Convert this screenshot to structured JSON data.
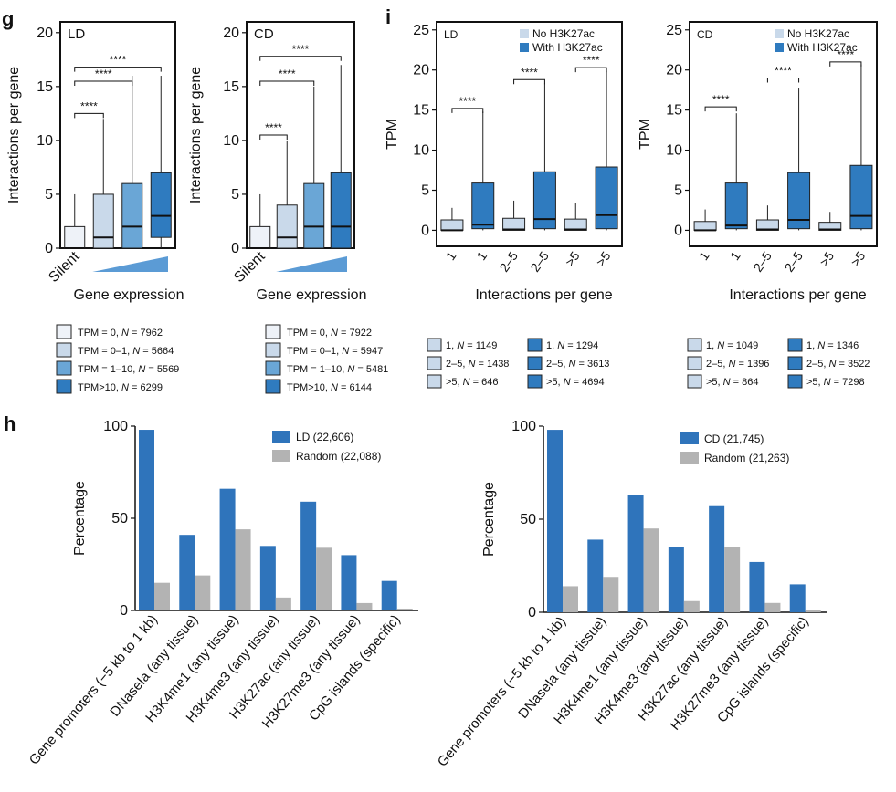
{
  "colors": {
    "white_box": "#eef2f8",
    "light_box": "#c9d9ea",
    "mid_box": "#6aa6d6",
    "dark_box": "#2f7bbf",
    "bar_blue": "#2f74bb",
    "bar_gray": "#b3b3b3",
    "ramp": "#5b9bd5"
  },
  "panel_labels": {
    "g": "g",
    "i": "i",
    "h": "h"
  },
  "chart_data": [
    {
      "id": "g-LD",
      "type": "box",
      "inset_label": "LD",
      "ylabel": "Interactions per gene",
      "xlabel": "Gene expression",
      "first_category_label": "Silent",
      "ylim": [
        0,
        21
      ],
      "yticks": [
        0,
        5,
        10,
        15,
        20
      ],
      "boxes": [
        {
          "min": 0,
          "q1": 0,
          "median": 0,
          "q3": 2,
          "max": 5
        },
        {
          "min": 0,
          "q1": 0,
          "median": 1,
          "q3": 5,
          "max": 12
        },
        {
          "min": 0,
          "q1": 0,
          "median": 2,
          "q3": 6,
          "max": 16
        },
        {
          "min": 0,
          "q1": 1,
          "median": 3,
          "q3": 7,
          "max": 16
        }
      ],
      "significance": [
        {
          "from": 0,
          "to": 1,
          "y": 12.5,
          "label": "****"
        },
        {
          "from": 0,
          "to": 2,
          "y": 15.5,
          "label": "****"
        },
        {
          "from": 0,
          "to": 3,
          "y": 16.8,
          "label": "****"
        }
      ],
      "legend": [
        {
          "label": "TPM = 0, N = 7962"
        },
        {
          "label": "TPM = 0–1, N = 5664"
        },
        {
          "label": "TPM = 1–10, N = 5569"
        },
        {
          "label": "TPM>10, N = 6299"
        }
      ]
    },
    {
      "id": "g-CD",
      "type": "box",
      "inset_label": "CD",
      "ylabel": "Interactions per gene",
      "xlabel": "Gene expression",
      "first_category_label": "Silent",
      "ylim": [
        0,
        21
      ],
      "yticks": [
        0,
        5,
        10,
        15,
        20
      ],
      "boxes": [
        {
          "min": 0,
          "q1": 0,
          "median": 0,
          "q3": 2,
          "max": 5
        },
        {
          "min": 0,
          "q1": 0,
          "median": 1,
          "q3": 4,
          "max": 10
        },
        {
          "min": 0,
          "q1": 0,
          "median": 2,
          "q3": 6,
          "max": 15
        },
        {
          "min": 0,
          "q1": 0,
          "median": 2,
          "q3": 7,
          "max": 17
        }
      ],
      "significance": [
        {
          "from": 0,
          "to": 1,
          "y": 10.5,
          "label": "****"
        },
        {
          "from": 0,
          "to": 2,
          "y": 15.5,
          "label": "****"
        },
        {
          "from": 0,
          "to": 3,
          "y": 17.8,
          "label": "****"
        }
      ],
      "legend": [
        {
          "label": "TPM = 0, N = 7922"
        },
        {
          "label": "TPM = 0–1, N = 5947"
        },
        {
          "label": "TPM = 1–10, N = 5481"
        },
        {
          "label": "TPM>10, N = 6144"
        }
      ]
    },
    {
      "id": "i-LD",
      "type": "box",
      "inset_label": "LD",
      "ylabel": "TPM",
      "xlabel": "Interactions per gene",
      "ylim": [
        -2,
        26
      ],
      "yticks": [
        0,
        5,
        10,
        15,
        20,
        25
      ],
      "categories": [
        "1",
        "1",
        "2–5",
        "2–5",
        ">5",
        ">5"
      ],
      "series_legend": [
        "No H3K27ac",
        "With H3K27ac"
      ],
      "boxes": [
        {
          "min": 0,
          "q1": 0,
          "median": 0,
          "q3": 1.3,
          "max": 2.8
        },
        {
          "min": 0,
          "q1": 0.2,
          "median": 0.7,
          "q3": 5.9,
          "max": 14.8
        },
        {
          "min": 0,
          "q1": 0,
          "median": 0.1,
          "q3": 1.5,
          "max": 3.7
        },
        {
          "min": 0,
          "q1": 0.2,
          "median": 1.4,
          "q3": 7.3,
          "max": 18.3
        },
        {
          "min": 0,
          "q1": 0,
          "median": 0.1,
          "q3": 1.4,
          "max": 3.4
        },
        {
          "min": 0,
          "q1": 0.2,
          "median": 1.9,
          "q3": 7.9,
          "max": 19.8
        }
      ],
      "significance": [
        {
          "from": 0,
          "to": 1,
          "y": 15.2,
          "label": "****"
        },
        {
          "from": 2,
          "to": 3,
          "y": 18.8,
          "label": "****"
        },
        {
          "from": 4,
          "to": 5,
          "y": 20.3,
          "label": "****"
        }
      ],
      "legend": [
        {
          "label": "1, N = 1149"
        },
        {
          "label": "2–5, N = 1438"
        },
        {
          "label": ">5, N = 646"
        },
        {
          "label": "1, N = 1294"
        },
        {
          "label": "2–5, N = 3613"
        },
        {
          "label": ">5, N = 4694"
        }
      ]
    },
    {
      "id": "i-CD",
      "type": "box",
      "inset_label": "CD",
      "ylabel": "TPM",
      "xlabel": "Interactions per gene",
      "ylim": [
        -2,
        26
      ],
      "yticks": [
        0,
        5,
        10,
        15,
        20,
        25
      ],
      "categories": [
        "1",
        "1",
        "2–5",
        "2–5",
        ">5",
        ">5"
      ],
      "series_legend": [
        "No H3K27ac",
        "With H3K27ac"
      ],
      "boxes": [
        {
          "min": 0,
          "q1": 0,
          "median": 0,
          "q3": 1.1,
          "max": 2.6
        },
        {
          "min": 0,
          "q1": 0.2,
          "median": 0.6,
          "q3": 5.9,
          "max": 14.6
        },
        {
          "min": 0,
          "q1": 0,
          "median": 0.1,
          "q3": 1.3,
          "max": 3.1
        },
        {
          "min": 0,
          "q1": 0.2,
          "median": 1.3,
          "q3": 7.2,
          "max": 17.8
        },
        {
          "min": 0,
          "q1": 0,
          "median": 0.1,
          "q3": 1.0,
          "max": 2.3
        },
        {
          "min": 0,
          "q1": 0.2,
          "median": 1.8,
          "q3": 8.1,
          "max": 20.7
        }
      ],
      "significance": [
        {
          "from": 0,
          "to": 1,
          "y": 15.4,
          "label": "****"
        },
        {
          "from": 2,
          "to": 3,
          "y": 19.0,
          "label": "****"
        },
        {
          "from": 4,
          "to": 5,
          "y": 21.0,
          "label": "****"
        }
      ],
      "legend": [
        {
          "label": "1, N = 1049"
        },
        {
          "label": "2–5, N = 1396"
        },
        {
          "label": ">5, N = 864"
        },
        {
          "label": "1, N = 1346"
        },
        {
          "label": "2–5, N = 3522"
        },
        {
          "label": ">5, N = 7298"
        }
      ]
    },
    {
      "id": "h-LD",
      "type": "bar",
      "ylabel": "Percentage",
      "ylim": [
        0,
        100
      ],
      "yticks": [
        0,
        50,
        100
      ],
      "categories": [
        "Gene promoters (−5 kb to 1 kb)",
        "DNaseIa (any tissue)",
        "H3K4me1 (any tissue)",
        "H3K4me3 (any tissue)",
        "H3K27ac (any tissue)",
        "H3K27me3 (any tissue)",
        "CpG islands (specific)"
      ],
      "series": [
        {
          "name": "LD (22,606)",
          "values": [
            98,
            41,
            66,
            35,
            59,
            30,
            16
          ]
        },
        {
          "name": "Random (22,088)",
          "values": [
            15,
            19,
            44,
            7,
            34,
            4,
            1
          ]
        }
      ]
    },
    {
      "id": "h-CD",
      "type": "bar",
      "ylabel": "Percentage",
      "ylim": [
        0,
        100
      ],
      "yticks": [
        0,
        50,
        100
      ],
      "categories": [
        "Gene promoters (−5 kb to 1 kb)",
        "DNaseIa (any tissue)",
        "H3K4me1 (any tissue)",
        "H3K4me3 (any tissue)",
        "H3K27ac (any tissue)",
        "H3K27me3 (any tissue)",
        "CpG islands (specific)"
      ],
      "series": [
        {
          "name": "CD (21,745)",
          "values": [
            98,
            39,
            63,
            35,
            57,
            27,
            15
          ]
        },
        {
          "name": "Random (21,263)",
          "values": [
            14,
            19,
            45,
            6,
            35,
            5,
            1
          ]
        }
      ]
    }
  ]
}
